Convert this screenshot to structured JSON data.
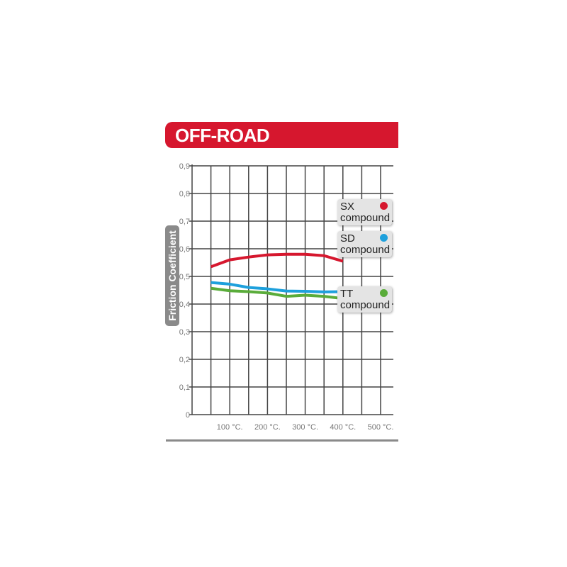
{
  "title": "OFF-ROAD",
  "colors": {
    "banner": "#d6172e",
    "grid": "#444444",
    "axis_label_bg": "#8a8a8a"
  },
  "chart_data": {
    "type": "line",
    "title": "OFF-ROAD",
    "ylabel": "Friction Coefficient",
    "xlabel": "",
    "xlim": [
      0,
      525
    ],
    "ylim": [
      0,
      0.9
    ],
    "grid": true,
    "legend_position": "right",
    "y_ticks": [
      "0",
      "0,1",
      "0,2",
      "0,3",
      "0,4",
      "0,5",
      "0,6",
      "0,7",
      "0,8",
      "0,9"
    ],
    "x_ticks": [
      {
        "value": 100,
        "label": "100 °C."
      },
      {
        "value": 200,
        "label": "200 °C."
      },
      {
        "value": 300,
        "label": "300 °C."
      },
      {
        "value": 400,
        "label": "400 °C."
      },
      {
        "value": 500,
        "label": "500 °C."
      }
    ],
    "x": [
      50,
      100,
      150,
      200,
      250,
      300,
      350,
      400
    ],
    "series": [
      {
        "name": "SX",
        "label2": "compound",
        "color": "#d6172e",
        "values": [
          0.535,
          0.56,
          0.57,
          0.578,
          0.58,
          0.58,
          0.575,
          0.555
        ]
      },
      {
        "name": "SD",
        "label2": "compound",
        "color": "#1ea0dc",
        "values": [
          0.478,
          0.472,
          0.46,
          0.455,
          0.447,
          0.446,
          0.444,
          0.445
        ]
      },
      {
        "name": "TT",
        "label2": "compound",
        "color": "#5aac3a",
        "values": [
          0.457,
          0.448,
          0.445,
          0.44,
          0.428,
          0.432,
          0.428,
          0.42
        ]
      }
    ]
  }
}
